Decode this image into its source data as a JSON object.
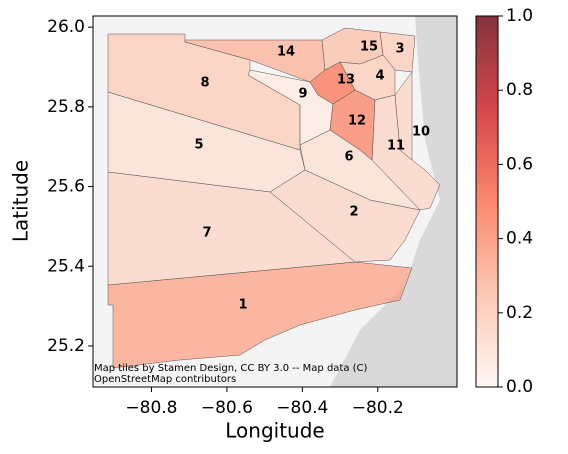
{
  "chart_data": {
    "type": "choropleth",
    "xlabel": "Longitude",
    "ylabel": "Latitude",
    "xlim": [
      -80.955,
      -79.99
    ],
    "ylim": [
      25.097,
      26.028
    ],
    "xticks": [
      {
        "value": -80.8,
        "label": "−80.8"
      },
      {
        "value": -80.6,
        "label": "−80.6"
      },
      {
        "value": -80.4,
        "label": "−80.4"
      },
      {
        "value": -80.2,
        "label": "−80.2"
      }
    ],
    "yticks": [
      {
        "value": 25.2,
        "label": "25.2"
      },
      {
        "value": 25.4,
        "label": "25.4"
      },
      {
        "value": 25.6,
        "label": "25.6"
      },
      {
        "value": 25.8,
        "label": "25.8"
      },
      {
        "value": 26.0,
        "label": "26.0"
      }
    ],
    "regions": [
      {
        "label": "1",
        "value": 0.35
      },
      {
        "label": "2",
        "value": 0.15
      },
      {
        "label": "3",
        "value": 0.2
      },
      {
        "label": "4",
        "value": 0.2
      },
      {
        "label": "5",
        "value": 0.1
      },
      {
        "label": "6",
        "value": 0.1
      },
      {
        "label": "7",
        "value": 0.15
      },
      {
        "label": "8",
        "value": 0.2
      },
      {
        "label": "9",
        "value": 0.05
      },
      {
        "label": "10",
        "value": 0.15
      },
      {
        "label": "11",
        "value": 0.15
      },
      {
        "label": "12",
        "value": 0.45
      },
      {
        "label": "13",
        "value": 0.5
      },
      {
        "label": "14",
        "value": 0.3
      },
      {
        "label": "15",
        "value": 0.25
      }
    ],
    "colorbar": {
      "cmap": "Reds",
      "lim": [
        0,
        1
      ],
      "ticks": [
        {
          "value": 0,
          "label": "0.0"
        },
        {
          "value": 0.2,
          "label": "0.2"
        },
        {
          "value": 0.4,
          "label": "0.4"
        },
        {
          "value": 0.6,
          "label": "0.6"
        },
        {
          "value": 0.8,
          "label": "0.8"
        },
        {
          "value": 1,
          "label": "1.0"
        }
      ]
    },
    "attribution": "Map tiles by Stamen Design, CC BY 3.0 -- Map data (C) OpenStreetMap contributors"
  }
}
